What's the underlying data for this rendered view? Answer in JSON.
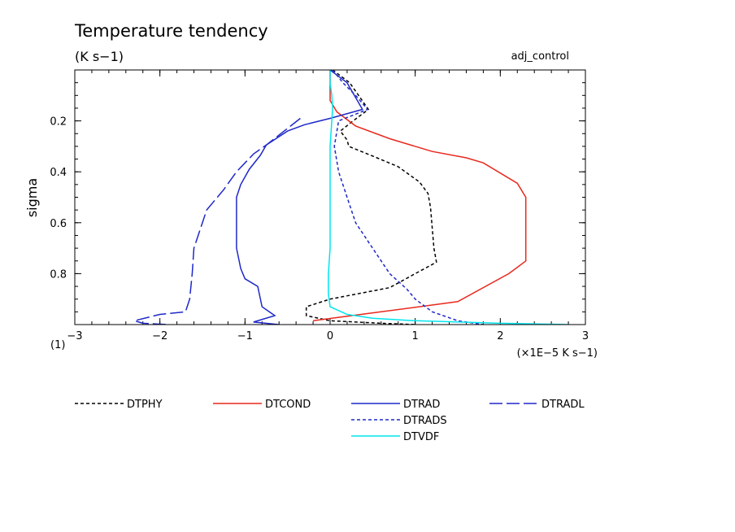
{
  "chart_data": {
    "type": "line",
    "title": "Temperature tendency",
    "subtitle": "(K s−1)",
    "run_label": "adj_control",
    "ylabel": "sigma",
    "xlabel": "(×1E−5 K s−1)",
    "panel_label": "(1)",
    "xlim": [
      -3,
      3
    ],
    "ylim": [
      0.0,
      1.0
    ],
    "y_inverted": true,
    "x_ticks": [
      -3,
      -2,
      -1,
      0,
      1,
      2,
      3
    ],
    "x_tick_labels": [
      "−3",
      "−2",
      "−1",
      "0",
      "1",
      "2",
      "3"
    ],
    "y_ticks": [
      0.2,
      0.4,
      0.6,
      0.8
    ],
    "y_tick_labels": [
      "0.2",
      "0.4",
      "0.6",
      "0.8"
    ],
    "series": [
      {
        "name": "DTPHY",
        "color": "#000000",
        "style": "dotted",
        "x": [
          0.03,
          0.23,
          0.45,
          0.25,
          0.12,
          0.2,
          0.22,
          0.55,
          0.8,
          1.05,
          1.15,
          1.18,
          1.2,
          1.22,
          1.25,
          1.0,
          0.7,
          0.0,
          -0.28,
          -0.28,
          0.0,
          0.6,
          1.0
        ],
        "y": [
          0.0,
          0.05,
          0.155,
          0.205,
          0.24,
          0.275,
          0.3,
          0.345,
          0.38,
          0.44,
          0.485,
          0.54,
          0.62,
          0.7,
          0.755,
          0.8,
          0.855,
          0.9,
          0.93,
          0.965,
          0.985,
          0.995,
          1.0
        ]
      },
      {
        "name": "DTCOND",
        "color": "#e8281c",
        "style": "solid",
        "x": [
          0.0,
          0.0,
          0.08,
          0.3,
          0.7,
          1.2,
          1.6,
          1.8,
          2.2,
          2.3,
          2.3,
          2.3,
          2.1,
          1.5,
          0.6,
          -0.2
        ],
        "y": [
          0.0,
          0.12,
          0.165,
          0.22,
          0.27,
          0.32,
          0.345,
          0.365,
          0.445,
          0.5,
          0.6,
          0.75,
          0.8,
          0.91,
          0.95,
          0.985
        ]
      },
      {
        "name": "DTRAD",
        "color": "#1e28c8",
        "style": "solid",
        "x": [
          0.0,
          0.2,
          0.38,
          0.0,
          -0.3,
          -0.5,
          -0.75,
          -0.82,
          -0.95,
          -1.05,
          -1.1,
          -1.1,
          -1.1,
          -1.05,
          -1.0,
          -0.85,
          -0.8,
          -0.65,
          -0.9,
          -0.6
        ],
        "y": [
          0.0,
          0.05,
          0.155,
          0.19,
          0.215,
          0.24,
          0.295,
          0.335,
          0.39,
          0.45,
          0.5,
          0.6,
          0.7,
          0.78,
          0.82,
          0.85,
          0.93,
          0.965,
          0.99,
          1.0
        ]
      },
      {
        "name": "DTRADL",
        "color": "#1e28c8",
        "style": "dash",
        "x": [
          -0.35,
          -0.75,
          -0.9,
          -1.1,
          -1.25,
          -1.45,
          -1.6,
          -1.62,
          -1.65,
          -1.7,
          -2.0,
          -2.3,
          -2.2,
          -1.9
        ],
        "y": [
          0.19,
          0.295,
          0.33,
          0.4,
          0.47,
          0.55,
          0.7,
          0.8,
          0.9,
          0.95,
          0.96,
          0.985,
          0.995,
          1.0
        ]
      },
      {
        "name": "DTRADS",
        "color": "#1e28c8",
        "style": "dotted",
        "x": [
          0.03,
          0.15,
          0.3,
          0.44,
          0.1,
          0.05,
          0.1,
          0.2,
          0.3,
          0.5,
          0.7,
          0.9,
          1.0,
          1.2,
          1.5,
          1.8
        ],
        "y": [
          0.0,
          0.05,
          0.1,
          0.155,
          0.2,
          0.3,
          0.4,
          0.5,
          0.6,
          0.7,
          0.8,
          0.86,
          0.9,
          0.95,
          0.985,
          1.0
        ]
      },
      {
        "name": "DTVDF",
        "color": "#00e5ee",
        "style": "solid",
        "x": [
          0.0,
          0.0,
          0.02,
          0.03,
          0.02,
          0.0,
          0.0,
          0.0,
          -0.02,
          -0.02,
          0.0,
          0.2,
          0.5,
          1.0,
          2.0,
          2.8
        ],
        "y": [
          0.0,
          0.05,
          0.1,
          0.15,
          0.2,
          0.3,
          0.5,
          0.7,
          0.8,
          0.88,
          0.93,
          0.96,
          0.975,
          0.985,
          0.995,
          1.0
        ]
      }
    ]
  }
}
